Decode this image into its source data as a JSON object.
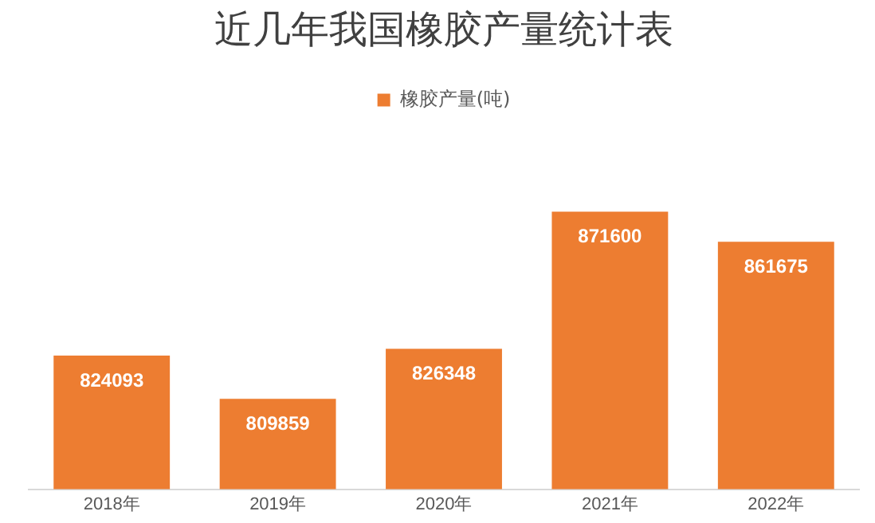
{
  "chart_data": {
    "type": "bar",
    "title": "近几年我国橡胶产量统计表",
    "categories": [
      "2018年",
      "2019年",
      "2020年",
      "2021年",
      "2022年"
    ],
    "series": [
      {
        "name": "橡胶产量(吨)",
        "color": "#ed7d31",
        "values": [
          824093,
          809859,
          826348,
          871600,
          861675
        ]
      }
    ],
    "data_labels": true,
    "legend": "top",
    "grid": false,
    "tick_labels": "x"
  }
}
